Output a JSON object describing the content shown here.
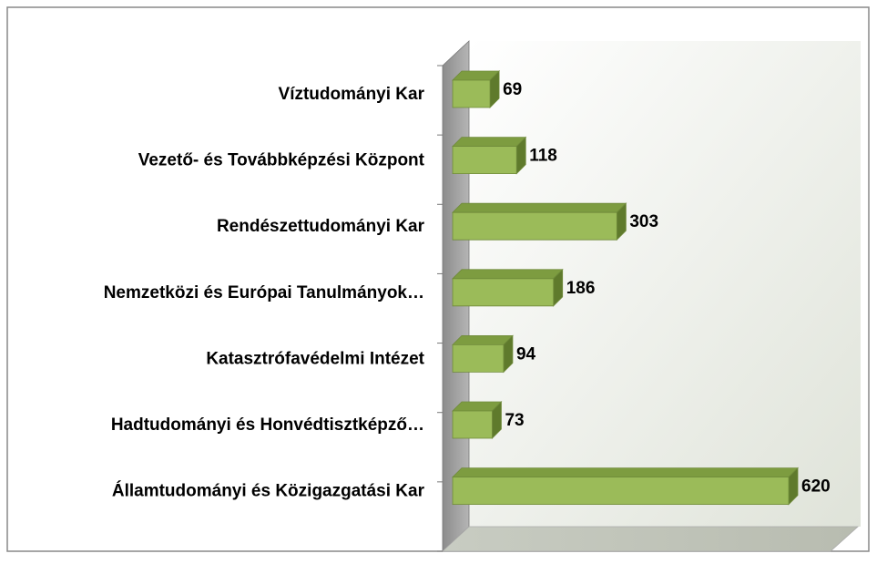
{
  "chart_data": {
    "type": "bar",
    "orientation": "horizontal",
    "three_d": true,
    "categories": [
      "Víztudományi Kar",
      "Vezető- és Továbbképzési Központ",
      "Rendészettudományi Kar",
      "Nemzetközi és Európai Tanulmányok…",
      "Katasztrófavédelmi Intézet",
      "Hadtudományi és Honvédtisztképző…",
      "Államtudományi és Közigazgatási Kar"
    ],
    "values": [
      69,
      118,
      303,
      186,
      94,
      73,
      620
    ],
    "color": "#9bbb59"
  }
}
